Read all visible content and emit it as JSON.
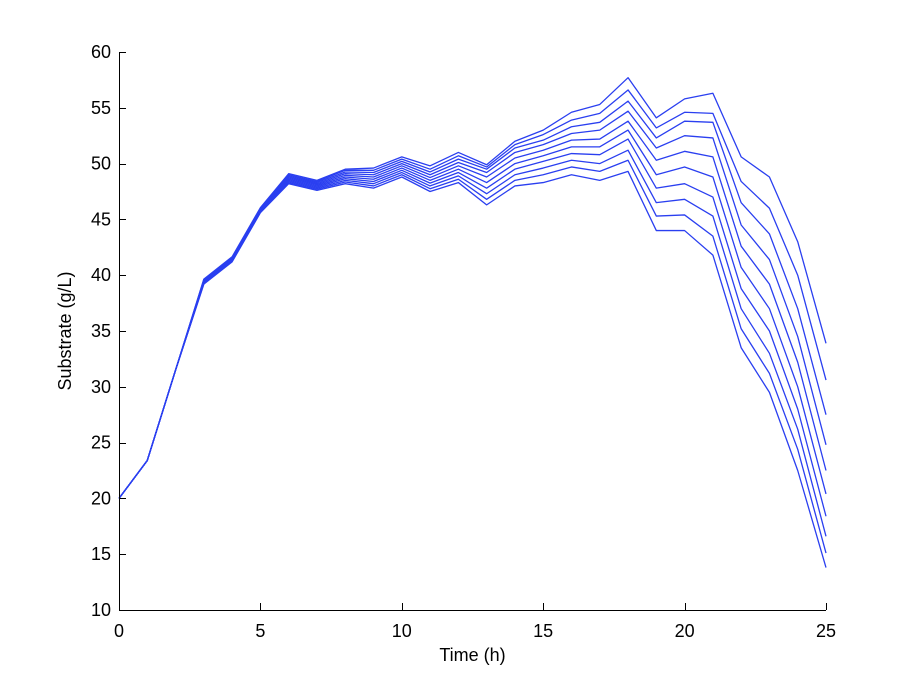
{
  "chart_data": {
    "type": "line",
    "title": "",
    "xlabel": "Time (h)",
    "ylabel": "Substrate (g/L)",
    "xlim": [
      0,
      25
    ],
    "ylim": [
      10,
      60
    ],
    "xticks": [
      0,
      5,
      10,
      15,
      20,
      25
    ],
    "yticks": [
      10,
      15,
      20,
      25,
      30,
      35,
      40,
      45,
      50,
      55,
      60
    ],
    "grid": false,
    "legend": "none",
    "line_color": "#2a3ff0",
    "x": [
      0,
      1,
      2,
      3,
      4,
      5,
      6,
      7,
      8,
      9,
      10,
      11,
      12,
      13,
      14,
      15,
      16,
      17,
      18,
      19,
      20,
      21,
      22,
      23,
      24,
      25
    ],
    "series": [
      {
        "values": [
          20,
          23.4,
          31.5,
          39.2,
          41.2,
          45.6,
          48.2,
          47.6,
          48.2,
          47.8,
          48.8,
          47.5,
          48.3,
          46.3,
          48,
          48.3,
          49,
          48.5,
          49.3,
          44,
          44,
          41.8,
          33.5,
          29.5,
          22.5,
          13.8
        ]
      },
      {
        "values": [
          20,
          23.4,
          31.5,
          39.25,
          41.25,
          45.65,
          48.3,
          47.7,
          48.35,
          48,
          49,
          47.75,
          48.6,
          46.8,
          48.5,
          49,
          49.7,
          49.3,
          50.3,
          45.3,
          45.4,
          43.5,
          35.2,
          31.2,
          24.4,
          15.1
        ]
      },
      {
        "values": [
          20,
          23.4,
          31.5,
          39.3,
          41.3,
          45.7,
          48.4,
          47.8,
          48.5,
          48.2,
          49.2,
          48,
          48.9,
          47.3,
          49,
          49.6,
          50.3,
          50,
          51.2,
          46.5,
          46.8,
          45.3,
          37,
          33,
          26.2,
          16.6
        ]
      },
      {
        "values": [
          20,
          23.4,
          31.5,
          39.35,
          41.35,
          45.75,
          48.5,
          47.9,
          48.65,
          48.4,
          49.4,
          48.25,
          49.2,
          47.8,
          49.5,
          50.2,
          50.9,
          50.8,
          52.2,
          47.8,
          48.2,
          47,
          38.8,
          35,
          28,
          18.4
        ]
      },
      {
        "values": [
          20,
          23.4,
          31.5,
          39.4,
          41.4,
          45.8,
          48.6,
          48,
          48.8,
          48.6,
          49.6,
          48.5,
          49.5,
          48.3,
          50,
          50.7,
          51.5,
          51.5,
          53,
          49,
          49.7,
          48.8,
          40.7,
          37,
          30,
          20.4
        ]
      },
      {
        "values": [
          20,
          23.4,
          31.5,
          39.45,
          41.45,
          45.85,
          48.7,
          48.1,
          48.95,
          48.8,
          49.8,
          48.75,
          49.8,
          48.8,
          50.5,
          51.2,
          52.1,
          52.2,
          53.8,
          50.3,
          51.1,
          50.6,
          42.6,
          39.2,
          32.2,
          22.5
        ]
      },
      {
        "values": [
          20,
          23.4,
          31.5,
          39.5,
          41.5,
          45.9,
          48.8,
          48.2,
          49.1,
          49,
          50,
          49,
          50.1,
          49.2,
          51,
          51.7,
          52.7,
          53,
          54.7,
          51.4,
          52.5,
          52.3,
          44.5,
          41.4,
          34.5,
          24.8
        ]
      },
      {
        "values": [
          20,
          23.4,
          31.5,
          39.55,
          41.55,
          45.95,
          48.9,
          48.3,
          49.25,
          49.2,
          50.2,
          49.25,
          50.4,
          49.5,
          51.4,
          52.1,
          53.3,
          53.7,
          55.6,
          52.3,
          53.8,
          53.7,
          46.5,
          43.7,
          37,
          27.5
        ]
      },
      {
        "values": [
          20,
          23.4,
          31.5,
          39.6,
          41.6,
          46,
          49,
          48.4,
          49.4,
          49.4,
          50.4,
          49.5,
          50.7,
          49.7,
          51.7,
          52.6,
          53.9,
          54.5,
          56.6,
          53.2,
          54.6,
          54.5,
          48.4,
          46,
          40,
          30.6
        ]
      },
      {
        "values": [
          20,
          23.4,
          31.5,
          39.65,
          41.65,
          46.05,
          49.1,
          48.5,
          49.5,
          49.6,
          50.6,
          49.8,
          51,
          49.9,
          52,
          53,
          54.6,
          55.3,
          57.7,
          54.1,
          55.8,
          56.3,
          50.6,
          48.8,
          43,
          33.9
        ]
      }
    ]
  }
}
